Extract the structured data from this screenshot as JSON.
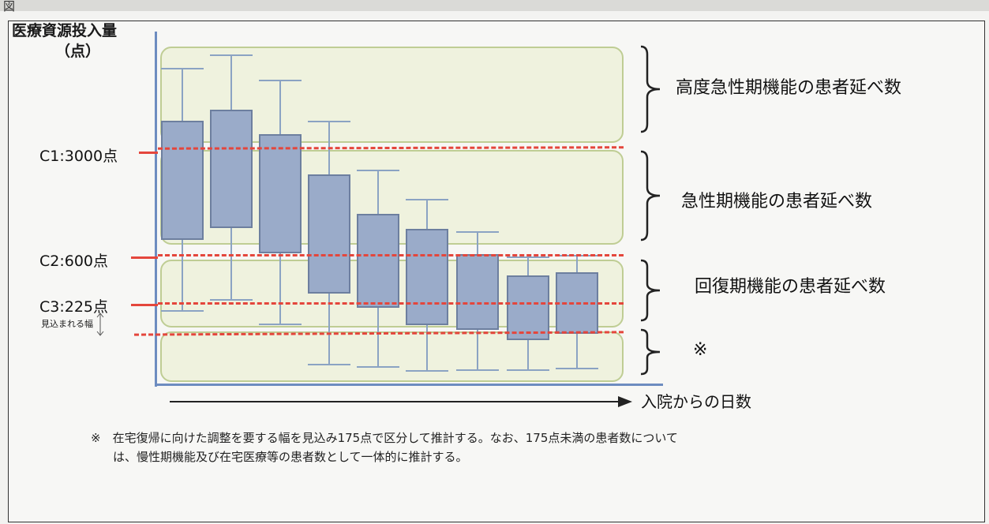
{
  "header": {
    "fig_prefix": "図"
  },
  "y_axis": {
    "title_line1": "医療資源投入量",
    "title_line2": "（点）"
  },
  "x_axis": {
    "label": "入院からの日数"
  },
  "thresholds": [
    {
      "id": "c1",
      "label": "C1:3000点",
      "value": 3000
    },
    {
      "id": "c2",
      "label": "C2:600点",
      "value": 600
    },
    {
      "id": "c3",
      "label": "C3:225点",
      "value": 225
    }
  ],
  "margin_note": "見込まれる幅",
  "categories": [
    {
      "label": "高度急性期機能の患者延べ数"
    },
    {
      "label": "急性期機能の患者延べ数"
    },
    {
      "label": "回復期機能の患者延べ数"
    },
    {
      "label": "※"
    }
  ],
  "footnote": {
    "line1": "※　在宅復帰に向けた調整を要する幅を見込み175点で区分して推計する。なお、175点未満の患者数について",
    "line2": "は、慢性期機能及び在宅医療等の患者数として一体的に推計する。"
  },
  "colors": {
    "threshold": "#e4463c",
    "box": "#9aabc9",
    "band": "#eff2dc",
    "axis": "#6d8cc0"
  }
}
